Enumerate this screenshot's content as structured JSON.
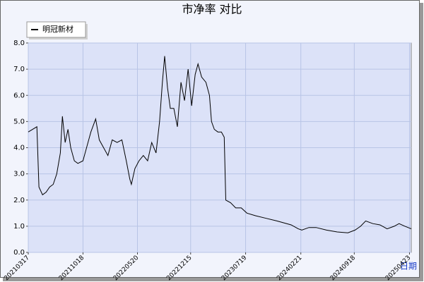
{
  "chart_data": {
    "type": "line",
    "title": "市净率  对比",
    "x_label": "日期",
    "x": [
      "20210317",
      "20210420",
      "20210428",
      "20210512",
      "20210526",
      "20210609",
      "20210623",
      "20210707",
      "20210721",
      "20210729",
      "20210809",
      "20210820",
      "20210831",
      "20210914",
      "20210928",
      "20211018",
      "20211101",
      "20211118",
      "20211207",
      "20211221",
      "20220107",
      "20220124",
      "20220210",
      "20220301",
      "20220320",
      "20220406",
      "20220420",
      "20220426",
      "20220510",
      "20220526",
      "20220612",
      "20220629",
      "20220715",
      "20220801",
      "20220815",
      "20220826",
      "20220904",
      "20220915",
      "20220926",
      "20221010",
      "20221024",
      "20221107",
      "20221121",
      "20221205",
      "20221219",
      "20230102",
      "20230113",
      "20230127",
      "20230213",
      "20230227",
      "20230307",
      "20230318",
      "20230401",
      "20230415",
      "20230426",
      "20230502",
      "20230521",
      "20230610",
      "20230702",
      "20230724",
      "20230827",
      "20231008",
      "20231119",
      "20240114",
      "20240211",
      "20240225",
      "20240324",
      "20240421",
      "20240601",
      "20240713",
      "20240824",
      "20240921",
      "20241013",
      "20241102",
      "20241130",
      "20241228",
      "20250125",
      "20250222",
      "20250313",
      "20250405",
      "20250430"
    ],
    "series": [
      {
        "name": "明冠新材",
        "color": "#000000",
        "values": [
          4.6,
          4.8,
          2.5,
          2.2,
          2.3,
          2.5,
          2.6,
          3.0,
          3.8,
          5.2,
          4.2,
          4.7,
          4.0,
          3.5,
          3.4,
          3.5,
          4.0,
          4.6,
          5.1,
          4.3,
          4.0,
          3.7,
          4.3,
          4.2,
          4.3,
          3.5,
          2.8,
          2.6,
          3.2,
          3.5,
          3.7,
          3.5,
          4.2,
          3.8,
          5.0,
          6.5,
          7.5,
          6.3,
          5.5,
          5.5,
          4.8,
          6.5,
          5.8,
          7.0,
          5.6,
          6.8,
          7.2,
          6.7,
          6.5,
          6.0,
          5.0,
          4.7,
          4.6,
          4.6,
          4.4,
          2.0,
          1.9,
          1.7,
          1.7,
          1.5,
          1.4,
          1.3,
          1.2,
          1.05,
          0.9,
          0.85,
          0.95,
          0.95,
          0.85,
          0.78,
          0.75,
          0.85,
          1.0,
          1.2,
          1.1,
          1.05,
          0.9,
          1.0,
          1.1,
          1.0,
          0.9
        ]
      }
    ],
    "xlim": [
      "20210317",
      "20250430"
    ],
    "xticks": [
      "20210317",
      "20211018",
      "20220520",
      "20221215",
      "20230719",
      "20240221",
      "20240918",
      "20250423"
    ],
    "ylim": [
      0,
      8
    ],
    "yticks": [
      {
        "value": 0,
        "label": "0.0"
      },
      {
        "value": 1,
        "label": "1.0"
      },
      {
        "value": 2,
        "label": "2.0"
      },
      {
        "value": 3,
        "label": "3.0"
      },
      {
        "value": 4,
        "label": "4.0"
      },
      {
        "value": 5,
        "label": "5.0"
      },
      {
        "value": 6,
        "label": "6.0"
      },
      {
        "value": 7,
        "label": "7.0"
      },
      {
        "value": 8,
        "label": "8.0"
      }
    ],
    "grid": true,
    "legend": "top-left"
  }
}
